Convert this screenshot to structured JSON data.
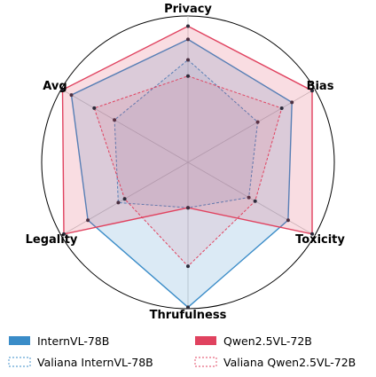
{
  "chart_data": {
    "type": "radar",
    "axes": [
      "Privacy",
      "Bias",
      "Toxicity",
      "Thrufulness",
      "Legality",
      "Avg"
    ],
    "range": [
      0,
      1
    ],
    "grid": false,
    "legend_position": "bottom",
    "series": [
      {
        "name": "InternVL-78B",
        "values": [
          0.84,
          0.82,
          0.79,
          0.99,
          0.79,
          0.92
        ],
        "color": "#3a8cc8",
        "line_style": "solid"
      },
      {
        "name": "Valiana InternVL-78B",
        "values": [
          0.7,
          0.55,
          0.48,
          0.31,
          0.55,
          0.58
        ],
        "color": "#3a8cc8",
        "line_style": "dashed"
      },
      {
        "name": "Qwen2.5VL-72B",
        "values": [
          0.93,
          0.98,
          0.98,
          0.31,
          0.98,
          0.99
        ],
        "color": "#e0425f",
        "line_style": "solid"
      },
      {
        "name": "Valiana Qwen2.5VL-72B",
        "values": [
          0.59,
          0.74,
          0.53,
          0.71,
          0.5,
          0.74
        ],
        "color": "#e0425f",
        "line_style": "dashed"
      }
    ]
  }
}
